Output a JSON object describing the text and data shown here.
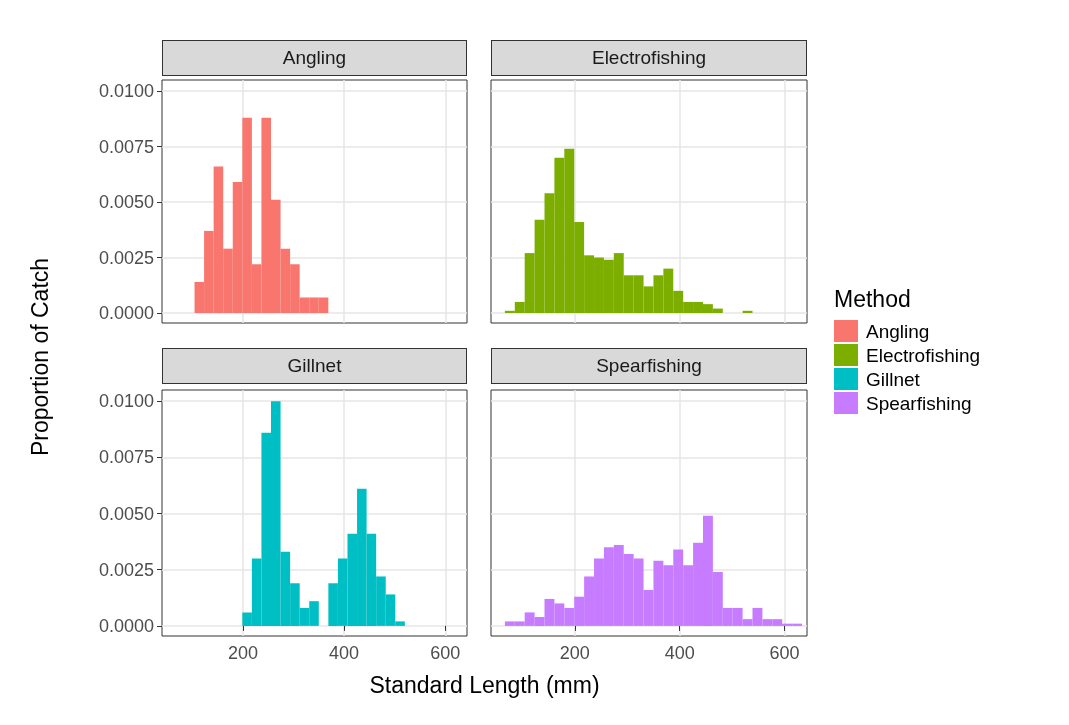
{
  "chart_data": [
    {
      "type": "histogram",
      "title": "Angling",
      "ylabel": "Proportion of Catch",
      "legend_title": "Method",
      "legend": "right",
      "grid": true,
      "tick_labels": "y",
      "bins": [
        66.5,
        85.4,
        104.3,
        123.2,
        142.1,
        161,
        179.9,
        198.8,
        217.7,
        236.6,
        255.5,
        274.4,
        293.3,
        312.2,
        331.1,
        350,
        368.9,
        387.8,
        406.7,
        425.6,
        444.5,
        463.4,
        482.3,
        501.2,
        520.1,
        539,
        557.9,
        576.8,
        595.7,
        614.6,
        633.5
      ],
      "series": [
        {
          "name": "Angling",
          "color": "#f8766d",
          "values": [
            0,
            0,
            0.0014,
            0.0037,
            0.0066,
            0.0029,
            0.0059,
            0.0088,
            0.0022,
            0.0088,
            0.0051,
            0.0029,
            0.0022,
            0.0007,
            0.0007,
            0.0007,
            0,
            0,
            0,
            0,
            0,
            0,
            0,
            0,
            0,
            0,
            0,
            0,
            0,
            0
          ]
        }
      ],
      "xlim": [
        40,
        643
      ],
      "ylim": [
        -0.00045,
        0.0105
      ],
      "xticks": [
        200,
        400,
        600
      ],
      "yticks": [
        {
          "value": 0,
          "label": "0.0000"
        },
        {
          "value": 0.0025,
          "label": "0.0025"
        },
        {
          "value": 0.005,
          "label": "0.0050"
        },
        {
          "value": 0.0075,
          "label": "0.0075"
        },
        {
          "value": 0.01,
          "label": "0.0100"
        }
      ]
    },
    {
      "type": "histogram",
      "title": "Electrofishing",
      "legend": "right",
      "grid": true,
      "tick_labels": false,
      "bins": [
        66.5,
        85.4,
        104.3,
        123.2,
        142.1,
        161,
        179.9,
        198.8,
        217.7,
        236.6,
        255.5,
        274.4,
        293.3,
        312.2,
        331.1,
        350,
        368.9,
        387.8,
        406.7,
        425.6,
        444.5,
        463.4,
        482.3,
        501.2,
        520.1,
        539,
        557.9,
        576.8,
        595.7,
        614.6,
        633.5
      ],
      "series": [
        {
          "name": "Electrofishing",
          "color": "#7cae00",
          "values": [
            0.0001,
            0.0005,
            0.0027,
            0.0042,
            0.0054,
            0.007,
            0.0074,
            0.0041,
            0.0026,
            0.0025,
            0.0024,
            0.0027,
            0.0017,
            0.0017,
            0.0012,
            0.0017,
            0.002,
            0.001,
            0.0005,
            0.0005,
            0.0004,
            0.0002,
            0,
            0,
            0.0001,
            0,
            0,
            0,
            0,
            0
          ]
        }
      ],
      "xlim": [
        40,
        643
      ],
      "ylim": [
        -0.00045,
        0.0105
      ],
      "xticks": [
        200,
        400,
        600
      ],
      "yticks": [
        0,
        0.0025,
        0.005,
        0.0075,
        0.01
      ]
    },
    {
      "type": "histogram",
      "title": "Gillnet",
      "xlabel": "Standard Length (mm)",
      "legend": "right",
      "grid": true,
      "bins": [
        66.5,
        85.4,
        104.3,
        123.2,
        142.1,
        161,
        179.9,
        198.8,
        217.7,
        236.6,
        255.5,
        274.4,
        293.3,
        312.2,
        331.1,
        350,
        368.9,
        387.8,
        406.7,
        425.6,
        444.5,
        463.4,
        482.3,
        501.2,
        520.1,
        539,
        557.9,
        576.8,
        595.7,
        614.6,
        633.5
      ],
      "series": [
        {
          "name": "Gillnet",
          "color": "#00bfc4",
          "values": [
            0,
            0,
            0,
            0,
            0,
            0,
            0,
            0.0006,
            0.003,
            0.0086,
            0.01,
            0.0033,
            0.0019,
            0.0008,
            0.0011,
            0,
            0.0019,
            0.003,
            0.0041,
            0.0061,
            0.0041,
            0.0022,
            0.0014,
            0.0002,
            0,
            0,
            0,
            0,
            0,
            0
          ]
        }
      ],
      "xlim": [
        40,
        643
      ],
      "ylim": [
        -0.00045,
        0.0105
      ],
      "xticks": [
        200,
        400,
        600
      ],
      "yticks": [
        {
          "value": 0,
          "label": "0.0000"
        },
        {
          "value": 0.0025,
          "label": "0.0025"
        },
        {
          "value": 0.005,
          "label": "0.0050"
        },
        {
          "value": 0.0075,
          "label": "0.0075"
        },
        {
          "value": 0.01,
          "label": "0.0100"
        }
      ]
    },
    {
      "type": "histogram",
      "title": "Spearfishing",
      "legend": "right",
      "grid": true,
      "tick_labels": "x",
      "bins": [
        66.5,
        85.4,
        104.3,
        123.2,
        142.1,
        161,
        179.9,
        198.8,
        217.7,
        236.6,
        255.5,
        274.4,
        293.3,
        312.2,
        331.1,
        350,
        368.9,
        387.8,
        406.7,
        425.6,
        444.5,
        463.4,
        482.3,
        501.2,
        520.1,
        539,
        557.9,
        576.8,
        595.7,
        614.6,
        633.5
      ],
      "series": [
        {
          "name": "Spearfishing",
          "color": "#c77cff",
          "values": [
            0.0002,
            0.0002,
            0.0006,
            0.0004,
            0.0012,
            0.001,
            0.0008,
            0.0013,
            0.0022,
            0.003,
            0.0035,
            0.0036,
            0.0032,
            0.003,
            0.0016,
            0.0029,
            0.0027,
            0.0034,
            0.0027,
            0.0037,
            0.0049,
            0.0024,
            0.0008,
            0.0008,
            0.0003,
            0.0008,
            0.0003,
            0.0003,
            0.0001,
            0.0001
          ]
        }
      ],
      "xlim": [
        40,
        643
      ],
      "ylim": [
        -0.00045,
        0.0105
      ],
      "xticks": [
        200,
        400,
        600
      ],
      "yticks": [
        0,
        0.0025,
        0.005,
        0.0075,
        0.01
      ]
    }
  ]
}
